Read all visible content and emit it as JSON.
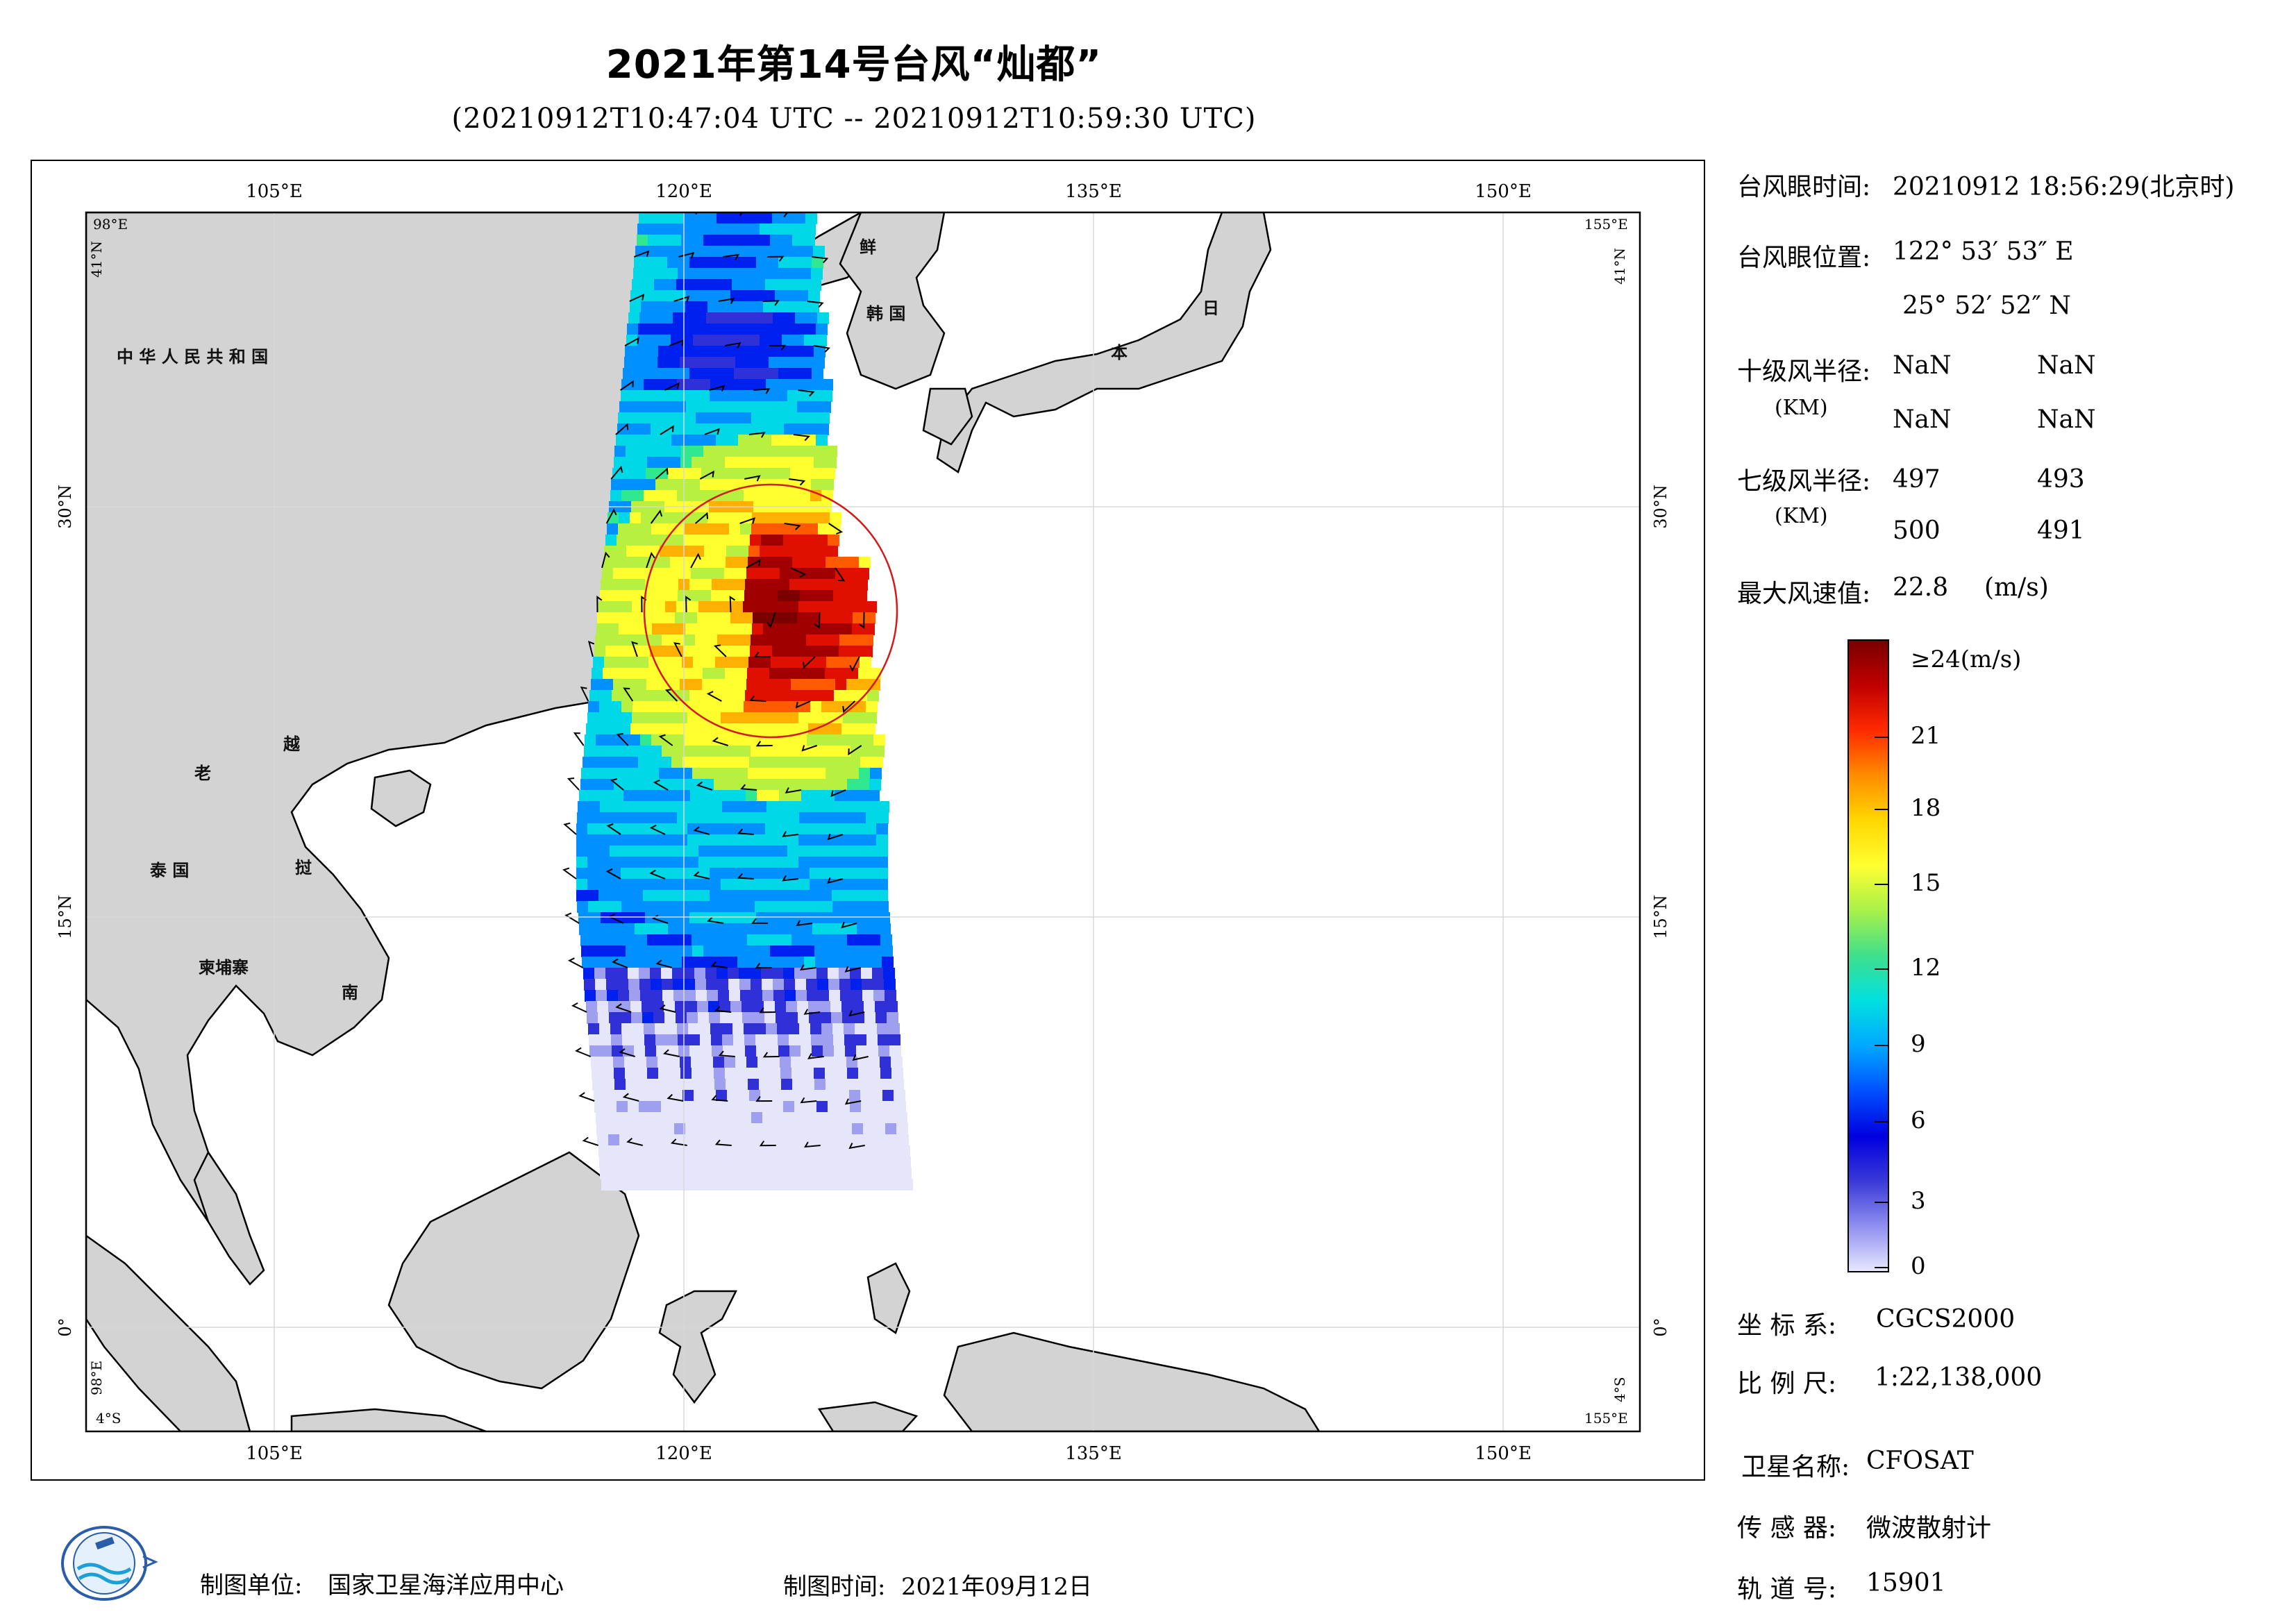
{
  "title": "2021年第14号台风“灿都”",
  "subtitle": "(20210912T10:47:04 UTC -- 20210912T10:59:30 UTC)",
  "map": {
    "lon_ticks_top": [
      "105°E",
      "120°E",
      "135°E",
      "150°E"
    ],
    "lon_ticks_bottom": [
      "105°E",
      "120°E",
      "135°E",
      "150°E"
    ],
    "lat_ticks_left": [
      "30°N",
      "15°N",
      "0°"
    ],
    "lat_ticks_right": [
      "30°N",
      "15°N",
      "0°"
    ],
    "corners": {
      "top_left_lon": "98°E",
      "top_left_lat": "41°N",
      "top_right_lon": "155°E",
      "top_right_lat": "41°N",
      "bottom_left_lon": "4°S",
      "bottom_left_lat": "98°E",
      "bottom_right_lon": "155°E",
      "bottom_right_lat": "4°S"
    },
    "country_labels": [
      "中 华 人 民 共 和 国",
      "鲜",
      "韩 国",
      "日",
      "本",
      "老",
      "越",
      "泰 国",
      "挝",
      "柬埔寨",
      "南"
    ],
    "colors": {
      "land": "#d3d3d3",
      "sea": "#ffffff",
      "coast": "#000000",
      "radius_circle": "#d21a1a"
    }
  },
  "info": {
    "eye_time_label": "台风眼时间:",
    "eye_time_value": "20210912 18:56:29(北京时)",
    "eye_pos_label": "台风眼位置:",
    "eye_lon": "122° 53′ 53″ E",
    "eye_lat": "25° 52′ 52″ N",
    "r10_label": "十级风半径:",
    "r10_unit": "(KM)",
    "r10_values": [
      "NaN",
      "NaN",
      "NaN",
      "NaN"
    ],
    "r7_label": "七级风半径:",
    "r7_unit": "(KM)",
    "r7_values": [
      "497",
      "493",
      "500",
      "491"
    ],
    "max_wind_label": "最大风速值:",
    "max_wind_value": "22.8",
    "max_wind_unit": "(m/s)"
  },
  "colorbar": {
    "top_label": "≥24(m/s)",
    "ticks": [
      "21",
      "18",
      "15",
      "12",
      "9",
      "6",
      "3",
      "0"
    ],
    "stops": [
      "#7a0000",
      "#c00000",
      "#ff2a00",
      "#ff8c00",
      "#ffd700",
      "#ffff30",
      "#a8f04a",
      "#3ee08c",
      "#00e0e0",
      "#00a8ff",
      "#0050ff",
      "#0000e0",
      "#3a3ad8",
      "#9090f0",
      "#e8e8ff"
    ]
  },
  "meta": {
    "crs_label": "坐 标 系:",
    "crs_value": "CGCS2000",
    "scale_label": "比 例 尺:",
    "scale_value": "1:22,138,000",
    "satellite_label": "卫星名称:",
    "satellite_value": "CFOSAT",
    "sensor_label": "传 感 器:",
    "sensor_value": "微波散射计",
    "orbit_label": "轨 道 号:",
    "orbit_value": "15901"
  },
  "footer": {
    "unit_label": "制图单位:",
    "unit_value": "国家卫星海洋应用中心",
    "time_label": "制图时间:",
    "time_value": "2021年09月12日"
  }
}
